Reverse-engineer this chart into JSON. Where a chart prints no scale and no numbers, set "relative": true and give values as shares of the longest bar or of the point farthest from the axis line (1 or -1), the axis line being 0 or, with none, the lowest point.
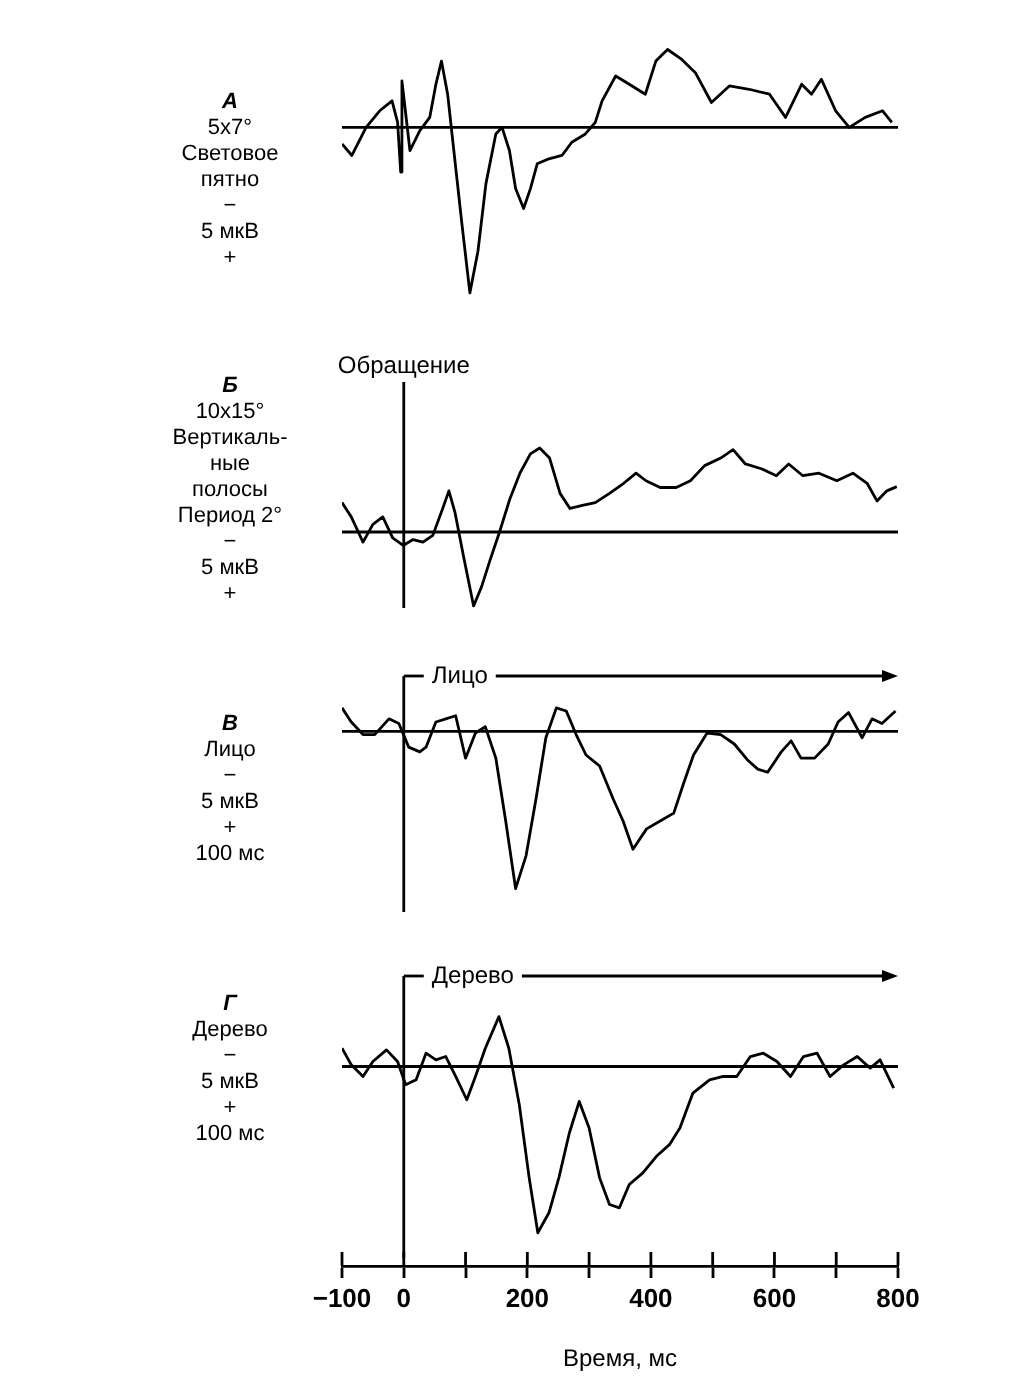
{
  "chart_data": [
    {
      "type": "line",
      "relative": true,
      "xlim": [
        -100,
        800
      ],
      "tick_labels": false,
      "grid": false,
      "legend": false,
      "marker": "none",
      "line_style": "solid",
      "annotations": [
        "А",
        "5x7°",
        "Световое\nпятно",
        "−",
        "5 мкВ",
        "+"
      ],
      "series": [
        {
          "color": "#000000",
          "x": [
            -100,
            -84,
            -61,
            -39,
            -19,
            -10,
            -5,
            -3,
            10,
            26,
            42,
            52,
            61,
            71,
            81,
            94,
            107,
            120,
            133,
            149,
            159,
            171,
            181,
            194,
            205,
            216,
            235,
            256,
            272,
            294,
            310,
            321,
            343,
            365,
            391,
            408,
            427,
            450,
            472,
            498,
            527,
            559,
            592,
            618,
            644,
            660,
            676,
            699,
            721,
            747,
            775,
            790
          ],
          "values": [
            -0.1,
            -0.17,
            0,
            0.1,
            0.16,
            0.03,
            -0.27,
            0.28,
            -0.14,
            -0.02,
            0.06,
            0.26,
            0.4,
            0.2,
            -0.14,
            -0.58,
            -1,
            -0.75,
            -0.34,
            -0.04,
            0,
            -0.14,
            -0.37,
            -0.49,
            -0.37,
            -0.22,
            -0.19,
            -0.17,
            -0.09,
            -0.04,
            0.03,
            0.16,
            0.31,
            0.26,
            0.2,
            0.4,
            0.47,
            0.41,
            0.33,
            0.15,
            0.25,
            0.23,
            0.2,
            0.06,
            0.26,
            0.2,
            0.29,
            0.1,
            0,
            0.06,
            0.1,
            0.03
          ]
        }
      ]
    },
    {
      "type": "line",
      "relative": true,
      "xlim": [
        -100,
        800
      ],
      "tick_labels": false,
      "grid": false,
      "legend": false,
      "marker": "none",
      "line_style": "solid",
      "annotations": [
        "Б",
        "10x15°",
        "Вертикаль-\nные\nполосы",
        "Период 2°",
        "−",
        "5 мкВ",
        "+"
      ],
      "ref_lines": [
        {
          "axis": "x",
          "value": 0,
          "label": "Обращение"
        }
      ],
      "series": [
        {
          "color": "#000000",
          "x": [
            -100,
            -85,
            -66,
            -50,
            -34,
            -18,
            -1,
            15,
            31,
            47,
            63,
            73,
            83,
            97,
            113,
            126,
            139,
            155,
            172,
            188,
            205,
            220,
            236,
            253,
            269,
            291,
            310,
            333,
            356,
            376,
            392,
            415,
            441,
            464,
            487,
            513,
            533,
            553,
            580,
            603,
            623,
            646,
            672,
            701,
            727,
            750,
            766,
            782,
            798
          ],
          "values": [
            0.35,
            0.18,
            -0.12,
            0.09,
            0.18,
            -0.07,
            -0.16,
            -0.09,
            -0.12,
            -0.04,
            0.28,
            0.49,
            0.23,
            -0.3,
            -0.88,
            -0.65,
            -0.35,
            0,
            0.4,
            0.7,
            0.93,
            1,
            0.88,
            0.46,
            0.28,
            0.32,
            0.35,
            0.46,
            0.58,
            0.7,
            0.61,
            0.53,
            0.53,
            0.61,
            0.79,
            0.88,
            0.98,
            0.81,
            0.75,
            0.67,
            0.81,
            0.67,
            0.7,
            0.61,
            0.7,
            0.58,
            0.37,
            0.49,
            0.54
          ]
        }
      ]
    },
    {
      "type": "line",
      "relative": true,
      "xlim": [
        -100,
        800
      ],
      "tick_labels": false,
      "grid": false,
      "legend": false,
      "marker": "none",
      "line_style": "solid",
      "annotations": [
        "В",
        "Лицо",
        "−",
        "5 мкВ",
        "+",
        "100 мс"
      ],
      "ref_lines": [
        {
          "axis": "x",
          "value": 0,
          "label": "Лицо"
        }
      ],
      "series": [
        {
          "color": "#000000",
          "x": [
            -100,
            -85,
            -66,
            -47,
            -24,
            -8,
            8,
            26,
            36,
            52,
            68,
            84,
            100,
            116,
            132,
            149,
            165,
            181,
            198,
            214,
            230,
            247,
            263,
            279,
            295,
            317,
            339,
            355,
            371,
            393,
            415,
            437,
            453,
            469,
            491,
            513,
            535,
            556,
            573,
            589,
            611,
            627,
            643,
            665,
            687,
            703,
            720,
            742,
            758,
            774,
            796
          ],
          "values": [
            0.15,
            0.06,
            -0.02,
            -0.02,
            0.08,
            0.05,
            -0.1,
            -0.13,
            -0.1,
            0.06,
            0.08,
            0.1,
            -0.17,
            -0.01,
            0.03,
            -0.17,
            -0.57,
            -1,
            -0.79,
            -0.43,
            -0.04,
            0.15,
            0.13,
            -0.02,
            -0.15,
            -0.22,
            -0.43,
            -0.57,
            -0.75,
            -0.62,
            -0.57,
            -0.52,
            -0.33,
            -0.15,
            -0.01,
            -0.02,
            -0.08,
            -0.18,
            -0.24,
            -0.26,
            -0.13,
            -0.06,
            -0.17,
            -0.17,
            -0.08,
            0.06,
            0.12,
            -0.04,
            0.08,
            0.05,
            0.13
          ]
        }
      ]
    },
    {
      "type": "line",
      "relative": true,
      "xlim": [
        -100,
        800
      ],
      "xticks": [
        -100,
        0,
        {
          "value": 100,
          "label": null
        },
        200,
        {
          "value": 300,
          "label": null
        },
        400,
        {
          "value": 500,
          "label": null
        },
        600,
        {
          "value": 700,
          "label": null
        },
        800
      ],
      "xlabel": "Время, мс",
      "tick_labels": "x",
      "grid": false,
      "legend": false,
      "marker": "none",
      "line_style": "solid",
      "annotations": [
        "Г",
        "Дерево",
        "−",
        "5 мкВ",
        "+",
        "100 мс"
      ],
      "ref_lines": [
        {
          "axis": "x",
          "value": 0,
          "label": "Дерево"
        }
      ],
      "series": [
        {
          "color": "#000000",
          "x": [
            -100,
            -85,
            -66,
            -50,
            -28,
            -10,
            3,
            20,
            36,
            52,
            68,
            84,
            102,
            116,
            132,
            154,
            170,
            187,
            203,
            217,
            235,
            251,
            268,
            284,
            300,
            317,
            333,
            349,
            365,
            387,
            409,
            430,
            447,
            468,
            495,
            517,
            539,
            561,
            582,
            604,
            626,
            647,
            669,
            690,
            712,
            734,
            755,
            771,
            793
          ],
          "values": [
            0.11,
            0.01,
            -0.06,
            0.03,
            0.1,
            0.03,
            -0.11,
            -0.08,
            0.08,
            0.04,
            0.06,
            -0.06,
            -0.2,
            -0.06,
            0.11,
            0.3,
            0.11,
            -0.23,
            -0.67,
            -1,
            -0.88,
            -0.67,
            -0.4,
            -0.21,
            -0.37,
            -0.67,
            -0.83,
            -0.85,
            -0.71,
            -0.64,
            -0.54,
            -0.47,
            -0.37,
            -0.16,
            -0.08,
            -0.06,
            -0.06,
            0.06,
            0.08,
            0.03,
            -0.06,
            0.06,
            0.08,
            -0.06,
            0.01,
            0.06,
            -0.01,
            0.04,
            -0.13
          ]
        }
      ]
    }
  ]
}
